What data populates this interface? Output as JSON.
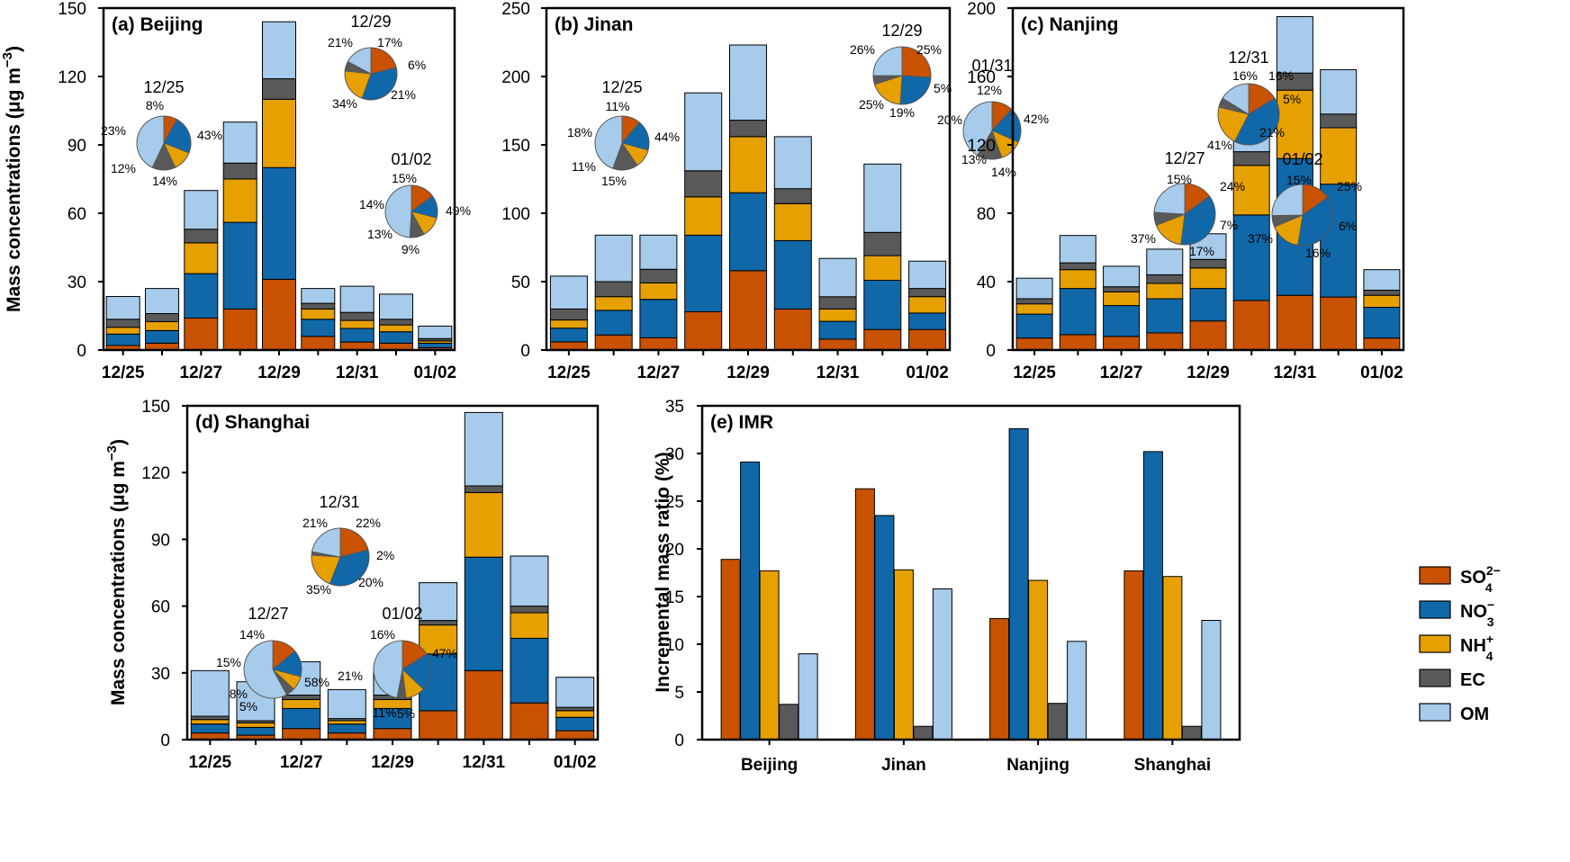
{
  "colors": {
    "SO4": "#c85200",
    "NO3": "#1068a8",
    "NH4": "#e6a000",
    "EC": "#595959",
    "OM": "#a6cbeb"
  },
  "labels": {
    "ylabel_mass_prefix": "Mass concentrations (μg m",
    "ylabel_mass_exp": "−3",
    "ylabel_mass_suffix": ")",
    "ylabel_imr": "Incremental mass ratio (%)"
  },
  "legend": [
    {
      "key": "SO4",
      "base": "SO",
      "sub": "4",
      "sup": "2−"
    },
    {
      "key": "NO3",
      "base": "NO",
      "sub": "3",
      "sup": "−"
    },
    {
      "key": "NH4",
      "base": "NH",
      "sub": "4",
      "sup": "+"
    },
    {
      "key": "EC",
      "base": "EC",
      "sub": "",
      "sup": ""
    },
    {
      "key": "OM",
      "base": "OM",
      "sub": "",
      "sup": ""
    }
  ],
  "chart_data": [
    {
      "id": "a",
      "type": "bar",
      "stacked": true,
      "title": "(a) Beijing",
      "ylim": [
        0,
        150
      ],
      "yticks": [
        0,
        30,
        60,
        90,
        120,
        150
      ],
      "categories": [
        "12/25",
        "12/26",
        "12/27",
        "12/28",
        "12/29",
        "12/30",
        "12/31",
        "01/01",
        "01/02"
      ],
      "xtick_labels": [
        "12/25",
        "",
        "12/27",
        "",
        "12/29",
        "",
        "12/31",
        "",
        "01/02"
      ],
      "series": [
        {
          "name": "SO4",
          "values": [
            2,
            3,
            14,
            18,
            31,
            6,
            3.5,
            3,
            1
          ]
        },
        {
          "name": "NO3",
          "values": [
            5,
            5.5,
            19.5,
            38,
            49,
            7.5,
            6,
            5,
            2
          ]
        },
        {
          "name": "NH4",
          "values": [
            3,
            4,
            13.5,
            19,
            30,
            4.5,
            3.5,
            3,
            1
          ]
        },
        {
          "name": "EC",
          "values": [
            3.5,
            3.5,
            6,
            7,
            9,
            2.5,
            3.5,
            2.5,
            1
          ]
        },
        {
          "name": "OM",
          "values": [
            10,
            11,
            17,
            18,
            25,
            6.5,
            11.5,
            11,
            5.5
          ]
        }
      ],
      "pies": [
        {
          "date": "12/25",
          "values": [
            8,
            23,
            12,
            14,
            43
          ],
          "labels": [
            "8%",
            "23%",
            "12%",
            "14%",
            "43%"
          ]
        },
        {
          "date": "12/29",
          "values": [
            21,
            34,
            21,
            6,
            17
          ],
          "labels": [
            "21%",
            "34%",
            "21%",
            "6%",
            "17%"
          ]
        },
        {
          "date": "01/02",
          "values": [
            15,
            14,
            13,
            9,
            49
          ],
          "labels": [
            "15%",
            "14%",
            "13%",
            "9%",
            "49%"
          ]
        }
      ]
    },
    {
      "id": "b",
      "type": "bar",
      "stacked": true,
      "title": "(b) Jinan",
      "ylim": [
        0,
        250
      ],
      "yticks": [
        0,
        50,
        100,
        150,
        200,
        250
      ],
      "categories": [
        "12/25",
        "12/26",
        "12/27",
        "12/28",
        "12/29",
        "12/30",
        "12/31",
        "01/01",
        "01/02"
      ],
      "xtick_labels": [
        "12/25",
        "",
        "12/27",
        "",
        "12/29",
        "",
        "12/31",
        "",
        "01/02"
      ],
      "series": [
        {
          "name": "SO4",
          "values": [
            6,
            11,
            9,
            28,
            58,
            30,
            8,
            15,
            15
          ]
        },
        {
          "name": "NO3",
          "values": [
            10,
            18,
            28,
            56,
            57,
            50,
            13,
            36,
            12
          ]
        },
        {
          "name": "NH4",
          "values": [
            6,
            10,
            12,
            28,
            41,
            27,
            9,
            18,
            12
          ]
        },
        {
          "name": "EC",
          "values": [
            8,
            11,
            10,
            19,
            12,
            11,
            9,
            17,
            6
          ]
        },
        {
          "name": "OM",
          "values": [
            24,
            34,
            25,
            57,
            55,
            38,
            28,
            50,
            20
          ]
        }
      ],
      "pies": [
        {
          "date": "12/25",
          "values": [
            11,
            18,
            11,
            15,
            44
          ],
          "labels": [
            "11%",
            "18%",
            "11%",
            "15%",
            "44%"
          ]
        },
        {
          "date": "12/29",
          "values": [
            26,
            25,
            19,
            5,
            25
          ],
          "labels": [
            "26%",
            "25%",
            "19%",
            "5%",
            "25%"
          ]
        },
        {
          "date": "01/31",
          "values": [
            12,
            20,
            13,
            14,
            42
          ],
          "labels": [
            "12%",
            "20%",
            "13%",
            "14%",
            "42%"
          ]
        }
      ]
    },
    {
      "id": "c",
      "type": "bar",
      "stacked": true,
      "title": "(c) Nanjing",
      "ylim": [
        0,
        200
      ],
      "yticks": [
        0,
        40,
        80,
        120,
        160,
        200
      ],
      "categories": [
        "12/25",
        "12/26",
        "12/27",
        "12/28",
        "12/29",
        "12/30",
        "12/31",
        "01/01",
        "01/02"
      ],
      "xtick_labels": [
        "12/25",
        "",
        "12/27",
        "",
        "12/29",
        "",
        "12/31",
        "",
        "01/02"
      ],
      "series": [
        {
          "name": "SO4",
          "values": [
            7,
            9,
            8,
            10,
            17,
            29,
            32,
            31,
            7
          ]
        },
        {
          "name": "NO3",
          "values": [
            14,
            27,
            18,
            20,
            19,
            50,
            80,
            66,
            18
          ]
        },
        {
          "name": "NH4",
          "values": [
            6,
            11,
            8,
            9,
            12,
            29,
            40,
            33,
            7
          ]
        },
        {
          "name": "EC",
          "values": [
            3,
            4,
            3,
            5,
            5,
            8,
            10,
            8,
            3
          ]
        },
        {
          "name": "OM",
          "values": [
            12,
            16,
            12,
            15,
            15,
            29,
            33,
            26,
            12
          ]
        }
      ],
      "pies": [
        {
          "date": "12/31",
          "values": [
            16,
            41,
            21,
            5,
            16
          ],
          "labels": [
            "16%",
            "41%",
            "21%",
            "5%",
            "16%"
          ]
        },
        {
          "date": "12/27",
          "values": [
            15,
            37,
            17,
            7,
            24
          ],
          "labels": [
            "15%",
            "37%",
            "17%",
            "7%",
            "24%"
          ]
        },
        {
          "date": "01/02",
          "values": [
            15,
            37,
            16,
            6,
            25
          ],
          "labels": [
            "15%",
            "37%",
            "16%",
            "6%",
            "25%"
          ]
        }
      ]
    },
    {
      "id": "d",
      "type": "bar",
      "stacked": true,
      "title": "(d) Shanghai",
      "ylim": [
        0,
        150
      ],
      "yticks": [
        0,
        30,
        60,
        90,
        120,
        150
      ],
      "categories": [
        "12/25",
        "12/26",
        "12/27",
        "12/28",
        "12/29",
        "12/30",
        "12/31",
        "01/01",
        "01/02"
      ],
      "xtick_labels": [
        "12/25",
        "",
        "12/27",
        "",
        "12/29",
        "",
        "12/31",
        "",
        "01/02"
      ],
      "series": [
        {
          "name": "SO4",
          "values": [
            3,
            2,
            5,
            3,
            5,
            13,
            31,
            16.5,
            4
          ]
        },
        {
          "name": "NO3",
          "values": [
            4,
            3.5,
            9,
            4,
            9,
            25.5,
            51,
            29,
            6
          ]
        },
        {
          "name": "NH4",
          "values": [
            2,
            2,
            4,
            1.5,
            4,
            13,
            29,
            11.5,
            3
          ]
        },
        {
          "name": "EC",
          "values": [
            1.5,
            1,
            2,
            1,
            2,
            2,
            3,
            3,
            1.5
          ]
        },
        {
          "name": "OM",
          "values": [
            20.5,
            17.5,
            15,
            13,
            12.5,
            17,
            33,
            22.5,
            13.5
          ]
        }
      ],
      "pies": [
        {
          "date": "12/31",
          "values": [
            21,
            35,
            20,
            2,
            22
          ],
          "labels": [
            "21%",
            "35%",
            "20%",
            "2%",
            "22%"
          ]
        },
        {
          "date": "12/27",
          "values": [
            14,
            15,
            8,
            5,
            58
          ],
          "labels": [
            "14%",
            "15%",
            "8%",
            "5%",
            "58%"
          ]
        },
        {
          "date": "01/02",
          "values": [
            16,
            21,
            11,
            5,
            47
          ],
          "labels": [
            "16%",
            "21%",
            "11%",
            "5%",
            "47%"
          ]
        }
      ]
    },
    {
      "id": "e",
      "type": "bar",
      "stacked": false,
      "title": "(e) IMR",
      "ylabel": "Incremental mass ratio (%)",
      "ylim": [
        0,
        35
      ],
      "yticks": [
        0,
        5,
        10,
        15,
        20,
        25,
        30,
        35
      ],
      "categories": [
        "Beijing",
        "Jinan",
        "Nanjing",
        "Shanghai"
      ],
      "series": [
        {
          "name": "SO4",
          "values": [
            18.9,
            26.3,
            12.7,
            17.7
          ]
        },
        {
          "name": "NO3",
          "values": [
            29.1,
            23.5,
            32.6,
            30.2
          ]
        },
        {
          "name": "NH4",
          "values": [
            17.7,
            17.8,
            16.7,
            17.1
          ]
        },
        {
          "name": "EC",
          "values": [
            3.7,
            1.4,
            3.8,
            1.4
          ]
        },
        {
          "name": "OM",
          "values": [
            9.0,
            15.8,
            10.3,
            12.5
          ]
        }
      ]
    }
  ]
}
